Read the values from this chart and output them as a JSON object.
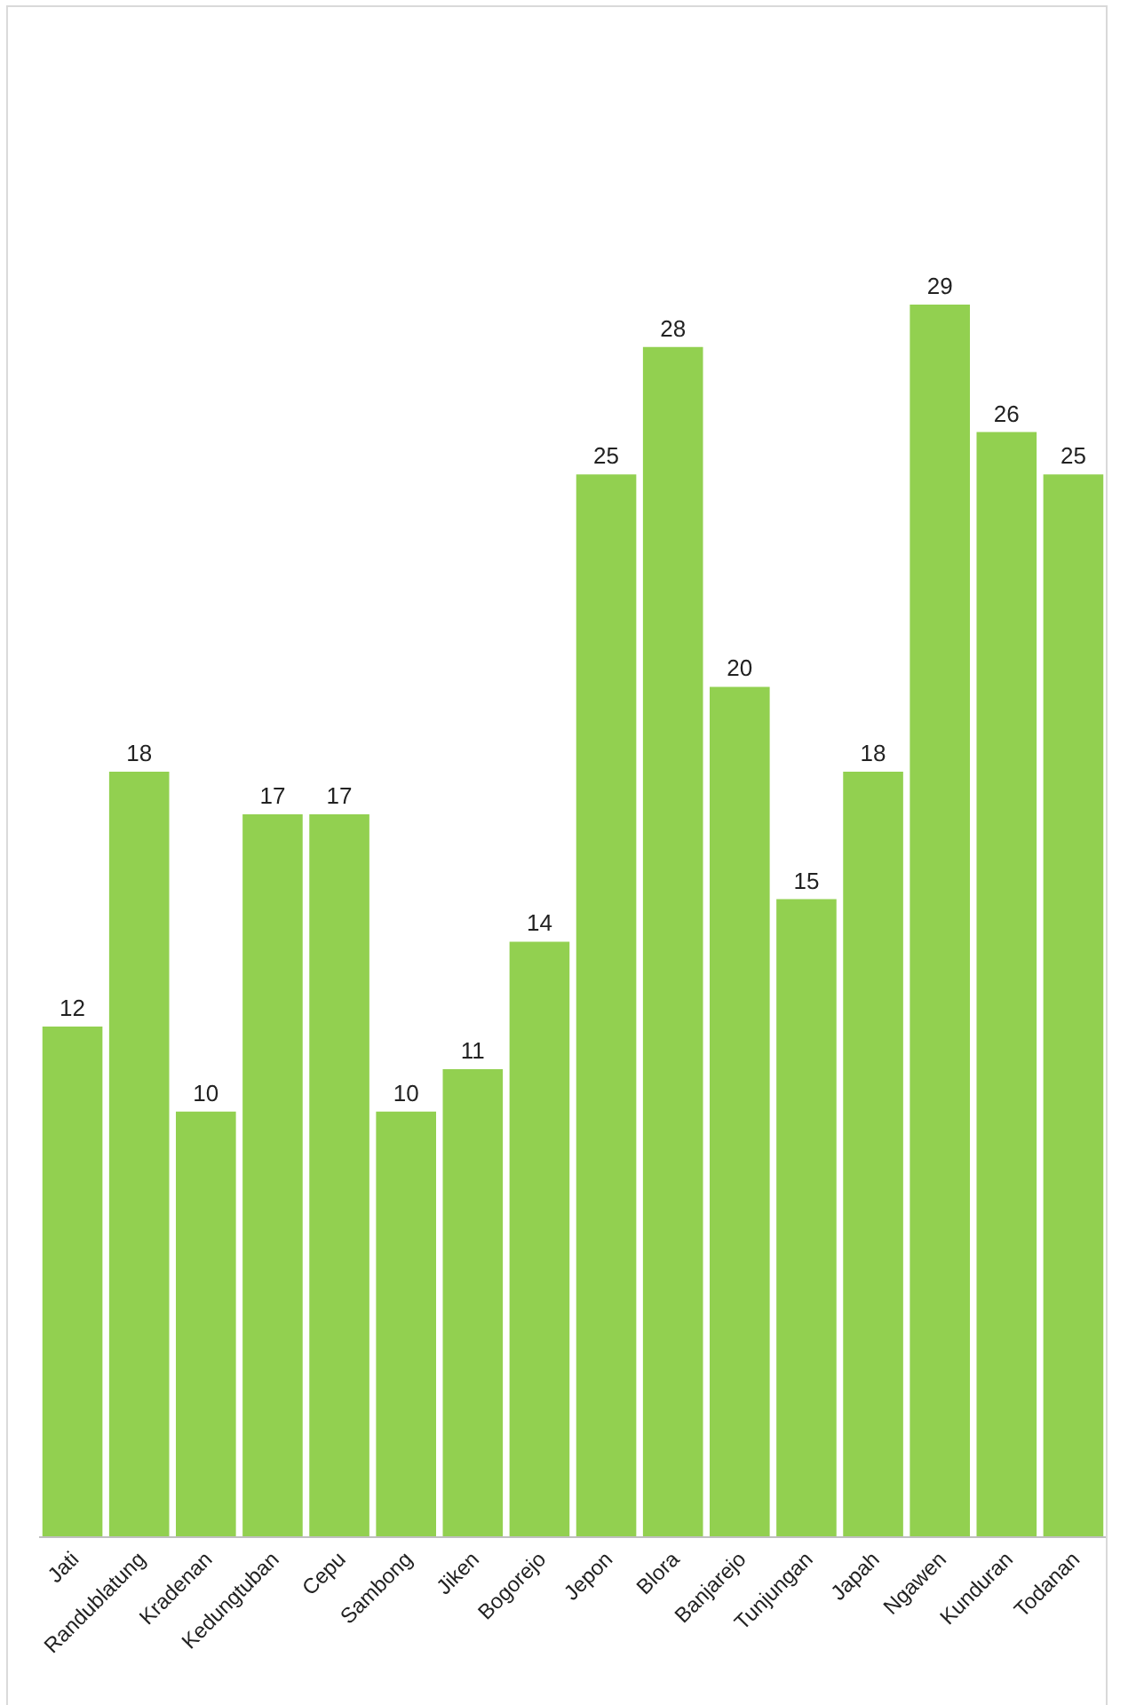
{
  "chart_data": {
    "type": "bar",
    "categories": [
      "Jati",
      "Randublatung",
      "Kradenan",
      "Kedungtuban",
      "Cepu",
      "Sambong",
      "Jiken",
      "Bogorejo",
      "Jepon",
      "Blora",
      "Banjarejo",
      "Tunjungan",
      "Japah",
      "Ngawen",
      "Kunduran",
      "Todanan"
    ],
    "values": [
      12,
      18,
      10,
      17,
      17,
      10,
      11,
      14,
      25,
      28,
      20,
      15,
      18,
      29,
      26,
      25
    ],
    "color": "#92d050",
    "data_labels": true,
    "legend": false,
    "tick_labels": "x"
  }
}
